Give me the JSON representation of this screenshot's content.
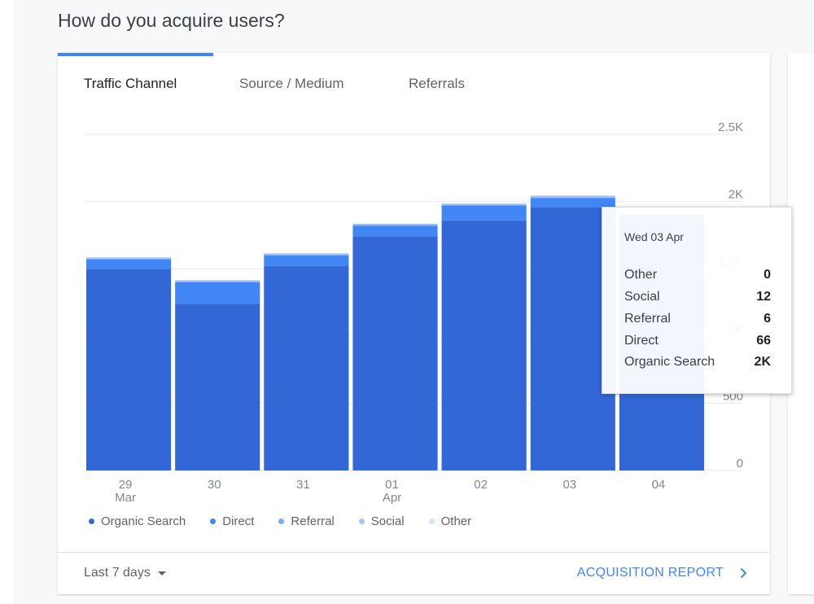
{
  "heading": "How do you acquire users?",
  "tabs": [
    {
      "label": "Traffic Channel",
      "active": true
    },
    {
      "label": "Source / Medium",
      "active": false
    },
    {
      "label": "Referrals",
      "active": false
    }
  ],
  "colors": {
    "organic_search": "#3367d6",
    "direct": "#4285f4",
    "referral": "#7baaf7",
    "social": "#a1c2fa",
    "other": "#d2e3fc",
    "accent": "#4285f4"
  },
  "chart_data": {
    "type": "bar",
    "stacked": true,
    "categories": [
      "29 Mar",
      "30",
      "31",
      "01 Apr",
      "02",
      "03",
      "04"
    ],
    "x_tick_labels": [
      [
        "29",
        "Mar"
      ],
      [
        "30"
      ],
      [
        "31"
      ],
      [
        "01",
        "Apr"
      ],
      [
        "02"
      ],
      [
        "03"
      ],
      [
        "04"
      ]
    ],
    "y_ticks": [
      0,
      500,
      1000,
      1500,
      2000,
      2500
    ],
    "y_tick_labels": [
      "0",
      "500",
      "1K",
      "1.5K",
      "2K",
      "2.5K"
    ],
    "ylim": [
      0,
      2500
    ],
    "grid": true,
    "legend_position": "bottom-left",
    "series": [
      {
        "name": "Organic Search",
        "color": "#3367d6",
        "values": [
          1500,
          1240,
          1520,
          1740,
          1860,
          1960,
          1900
        ]
      },
      {
        "name": "Direct",
        "color": "#4285f4",
        "values": [
          70,
          160,
          80,
          80,
          110,
          66,
          0
        ]
      },
      {
        "name": "Referral",
        "color": "#7baaf7",
        "values": [
          5,
          5,
          5,
          5,
          5,
          6,
          0
        ]
      },
      {
        "name": "Social",
        "color": "#a1c2fa",
        "values": [
          10,
          10,
          10,
          10,
          10,
          12,
          0
        ]
      },
      {
        "name": "Other",
        "color": "#d2e3fc",
        "values": [
          0,
          0,
          0,
          0,
          0,
          0,
          0
        ]
      }
    ]
  },
  "tooltip": {
    "date": "Wed 03 Apr",
    "rows": [
      {
        "label": "Other",
        "value": "0"
      },
      {
        "label": "Social",
        "value": "12"
      },
      {
        "label": "Referral",
        "value": "6"
      },
      {
        "label": "Direct",
        "value": "66"
      },
      {
        "label": "Organic Search",
        "value": "2K"
      }
    ]
  },
  "footer": {
    "date_range": "Last 7 days",
    "report_link": "ACQUISITION REPORT"
  }
}
